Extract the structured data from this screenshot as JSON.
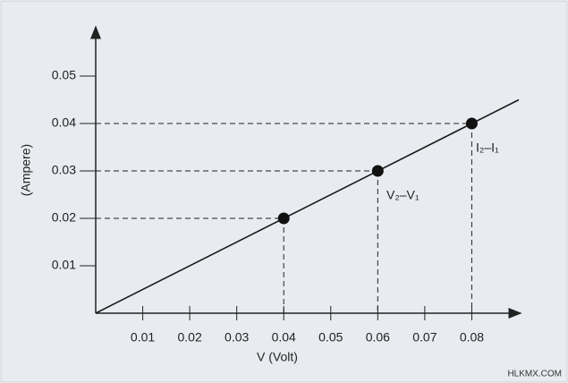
{
  "chart_data": {
    "type": "line",
    "x_label": "V (Volt)",
    "y_label": "(Ampere)",
    "xlim": [
      0,
      0.09
    ],
    "ylim": [
      0,
      0.06
    ],
    "xticks": [
      0.01,
      0.02,
      0.03,
      0.04,
      0.05,
      0.06,
      0.07,
      0.08
    ],
    "yticks": [
      0.01,
      0.02,
      0.03,
      0.04,
      0.05
    ],
    "series": [
      {
        "style": "line",
        "color": "#1a1a1a",
        "x": [
          0,
          0.09
        ],
        "values": [
          0,
          0.045
        ]
      },
      {
        "style": "points",
        "color": "#111111",
        "x": [
          0.04,
          0.06,
          0.08
        ],
        "values": [
          0.02,
          0.03,
          0.04
        ]
      }
    ],
    "annotations": [
      "I₂–I₁",
      "V₂–V₁"
    ],
    "watermark": "HLKMX.COM"
  }
}
